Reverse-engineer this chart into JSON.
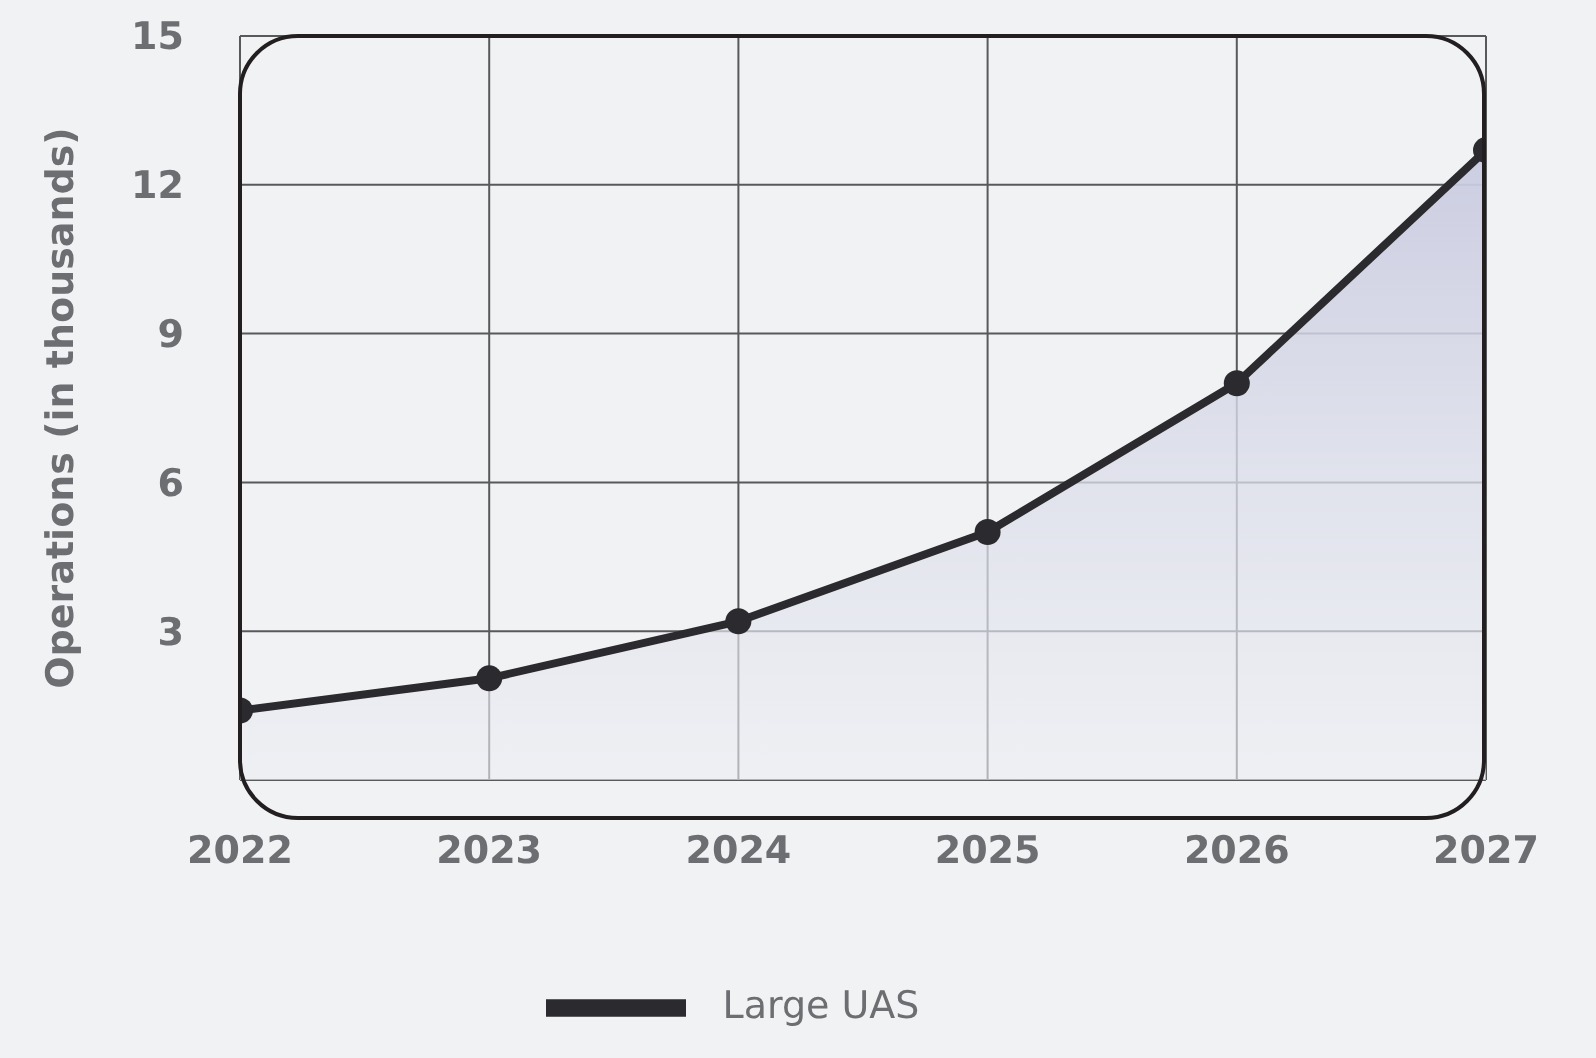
{
  "chart_data": {
    "type": "area",
    "ylabel": "Operations (in thousands)",
    "x": [
      2022,
      2023,
      2024,
      2025,
      2026,
      2027
    ],
    "series": [
      {
        "name": "Large UAS",
        "color": "#2b2a2e",
        "values": [
          1.4,
          2.05,
          3.2,
          5.0,
          8.0,
          12.7
        ]
      }
    ],
    "xlim": [
      2022,
      2027
    ],
    "xticks": [
      2022,
      2023,
      2024,
      2025,
      2026,
      2027
    ],
    "ylim": [
      0,
      15
    ],
    "yticks": [
      3,
      6,
      9,
      12,
      15
    ],
    "grid": true,
    "legend": "bottom",
    "marker": "circle",
    "line_style": "solid"
  }
}
